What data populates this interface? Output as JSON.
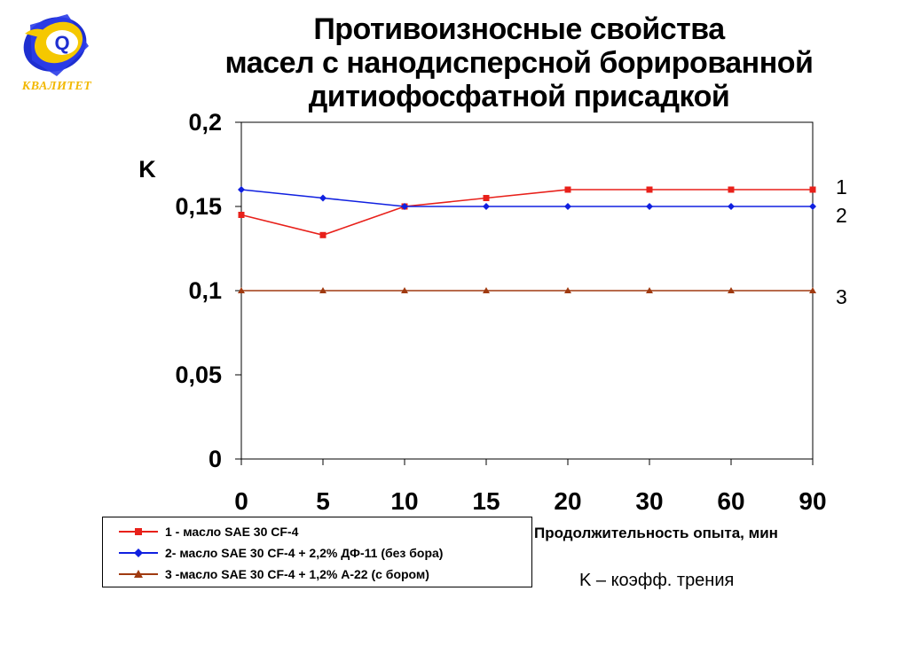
{
  "logo": {
    "text": "КВАЛИТЕТ"
  },
  "chart_data": {
    "type": "line",
    "title": [
      "Противоизносные свойства",
      "масел с нанодисперсной борированной",
      "дитиофосфатной присадкой"
    ],
    "ylabel": "K",
    "xlabel": "Продолжительность опыта, мин",
    "categories": [
      "0",
      "5",
      "10",
      "15",
      "20",
      "30",
      "60",
      "90"
    ],
    "y_ticks": [
      "0",
      "0,05",
      "0,1",
      "0,15",
      "0,2"
    ],
    "ylim": [
      0,
      0.2
    ],
    "grid": false,
    "legend_position": "bottom-left",
    "series": [
      {
        "name": "1 - масло SAE 30 CF-4",
        "end_label": "1",
        "color": "#e8201a",
        "marker": "square",
        "values": [
          0.145,
          0.133,
          0.15,
          0.155,
          0.16,
          0.16,
          0.16,
          0.16
        ]
      },
      {
        "name": "2- масло SAE 30 CF-4 + 2,2% ДФ-11 (без бора)",
        "end_label": "2",
        "color": "#1020e0",
        "marker": "diamond",
        "values": [
          0.16,
          0.155,
          0.15,
          0.15,
          0.15,
          0.15,
          0.15,
          0.15
        ]
      },
      {
        "name": "3 -масло SAE 30 CF-4 + 1,2% А-22 (с бором)",
        "end_label": "3",
        "color": "#a03a10",
        "marker": "triangle",
        "values": [
          0.1,
          0.1,
          0.1,
          0.1,
          0.1,
          0.1,
          0.1,
          0.1
        ]
      }
    ],
    "note": "K – коэфф. трения"
  }
}
